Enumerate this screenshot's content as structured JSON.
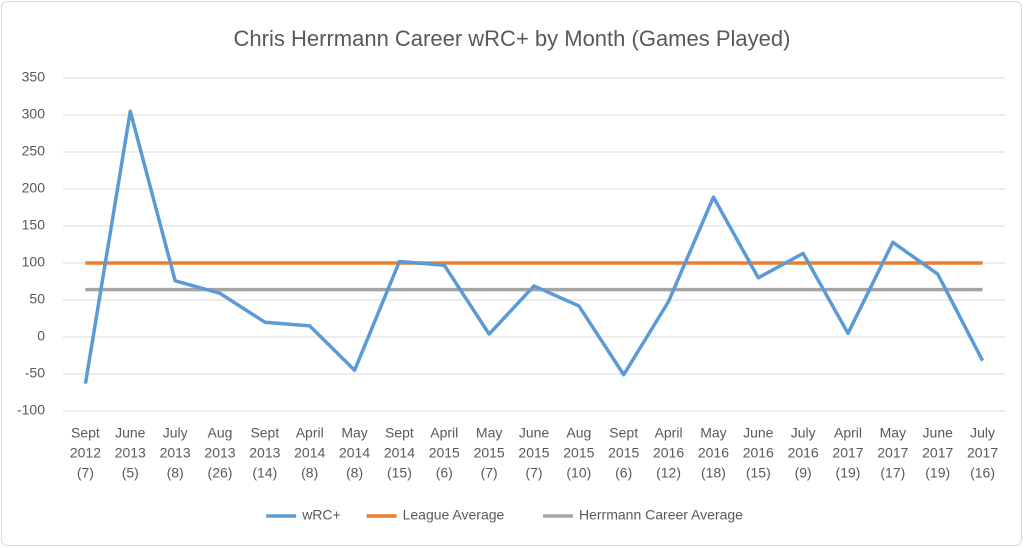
{
  "chart_data": {
    "type": "line",
    "title": "Chris Herrmann Career wRC+ by Month (Games Played)",
    "categories": [
      [
        "Sept",
        "2012",
        "(7)"
      ],
      [
        "June",
        "2013",
        "(5)"
      ],
      [
        "July",
        "2013",
        "(8)"
      ],
      [
        "Aug",
        "2013",
        "(26)"
      ],
      [
        "Sept",
        "2013",
        "(14)"
      ],
      [
        "April",
        "2014",
        "(8)"
      ],
      [
        "May",
        "2014",
        "(8)"
      ],
      [
        "Sept",
        "2014",
        "(15)"
      ],
      [
        "April",
        "2015",
        "(6)"
      ],
      [
        "May",
        "2015",
        "(7)"
      ],
      [
        "June",
        "2015",
        "(7)"
      ],
      [
        "Aug",
        "2015",
        "(10)"
      ],
      [
        "Sept",
        "2015",
        "(6)"
      ],
      [
        "April",
        "2016",
        "(12)"
      ],
      [
        "May",
        "2016",
        "(18)"
      ],
      [
        "June",
        "2016",
        "(15)"
      ],
      [
        "July",
        "2016",
        "(9)"
      ],
      [
        "April",
        "2017",
        "(19)"
      ],
      [
        "May",
        "2017",
        "(17)"
      ],
      [
        "June",
        "2017",
        "(19)"
      ],
      [
        "July",
        "2017",
        "(16)"
      ]
    ],
    "series": [
      {
        "name": "wRC+",
        "color": "#5b9bd5",
        "values": [
          -63,
          305,
          76,
          59,
          20,
          15,
          -45,
          102,
          97,
          4,
          69,
          42,
          -51,
          48,
          189,
          80,
          113,
          5,
          128,
          85,
          -32
        ]
      },
      {
        "name": "League Average",
        "color": "#ed7d31",
        "values": [
          100,
          100,
          100,
          100,
          100,
          100,
          100,
          100,
          100,
          100,
          100,
          100,
          100,
          100,
          100,
          100,
          100,
          100,
          100,
          100,
          100
        ]
      },
      {
        "name": "Herrmann Career Average",
        "color": "#a5a5a5",
        "values": [
          64,
          64,
          64,
          64,
          64,
          64,
          64,
          64,
          64,
          64,
          64,
          64,
          64,
          64,
          64,
          64,
          64,
          64,
          64,
          64,
          64
        ]
      }
    ],
    "ylim": [
      -100,
      350
    ],
    "yticks": [
      -100,
      -50,
      0,
      50,
      100,
      150,
      200,
      250,
      300,
      350
    ],
    "grid": true,
    "legend": "bottom"
  }
}
